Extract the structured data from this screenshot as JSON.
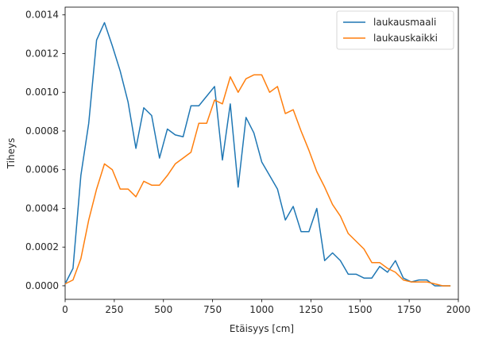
{
  "chart_data": {
    "type": "line",
    "xlabel": "Etäisyys [cm]",
    "ylabel": "Tiheys",
    "xlim": [
      0,
      2000
    ],
    "ylim": [
      -7e-05,
      0.00144
    ],
    "xticks": [
      0,
      250,
      500,
      750,
      1000,
      1250,
      1500,
      1750,
      2000
    ],
    "xtick_labels": [
      "0",
      "250",
      "500",
      "750",
      "1000",
      "1250",
      "1500",
      "1750",
      "2000"
    ],
    "yticks": [
      0,
      0.0002,
      0.0004,
      0.0006,
      0.0008,
      0.001,
      0.0012,
      0.0014
    ],
    "ytick_labels": [
      "0.0000",
      "0.0002",
      "0.0004",
      "0.0006",
      "0.0008",
      "0.0010",
      "0.0012",
      "0.0014"
    ],
    "grid": false,
    "legend_position": "top-right",
    "series": [
      {
        "name": "laukausmaali",
        "color": "#1f77b4",
        "x": [
          0,
          40,
          80,
          120,
          160,
          200,
          240,
          280,
          320,
          360,
          400,
          440,
          480,
          520,
          560,
          600,
          640,
          680,
          720,
          760,
          800,
          840,
          880,
          920,
          960,
          1000,
          1040,
          1080,
          1120,
          1160,
          1200,
          1240,
          1280,
          1320,
          1360,
          1400,
          1440,
          1480,
          1520,
          1560,
          1600,
          1640,
          1680,
          1720,
          1760,
          1800,
          1840,
          1880,
          1920,
          1960
        ],
        "y": [
          1e-05,
          9e-05,
          0.00057,
          0.00084,
          0.00127,
          0.00136,
          0.00124,
          0.00111,
          0.00095,
          0.00071,
          0.00092,
          0.00088,
          0.00066,
          0.00081,
          0.00078,
          0.00077,
          0.00093,
          0.00093,
          0.00098,
          0.00103,
          0.00065,
          0.00094,
          0.00051,
          0.00087,
          0.00079,
          0.00064,
          0.00057,
          0.0005,
          0.00034,
          0.00041,
          0.00028,
          0.00028,
          0.0004,
          0.00013,
          0.00017,
          0.00013,
          6e-05,
          6e-05,
          4e-05,
          4e-05,
          0.0001,
          7e-05,
          0.00013,
          4e-05,
          2e-05,
          3e-05,
          3e-05,
          0.0,
          0.0,
          0.0
        ]
      },
      {
        "name": "laukauskaikki",
        "color": "#ff7f0e",
        "x": [
          0,
          40,
          80,
          120,
          160,
          200,
          240,
          280,
          320,
          360,
          400,
          440,
          480,
          520,
          560,
          600,
          640,
          680,
          720,
          760,
          800,
          840,
          880,
          920,
          960,
          1000,
          1040,
          1080,
          1120,
          1160,
          1200,
          1240,
          1280,
          1320,
          1360,
          1400,
          1440,
          1480,
          1520,
          1560,
          1600,
          1640,
          1680,
          1720,
          1760,
          1800,
          1840,
          1880,
          1920,
          1960
        ],
        "y": [
          1e-05,
          3e-05,
          0.00014,
          0.00034,
          0.0005,
          0.00063,
          0.0006,
          0.0005,
          0.0005,
          0.00046,
          0.00054,
          0.00052,
          0.00052,
          0.00057,
          0.00063,
          0.00066,
          0.00069,
          0.00084,
          0.00084,
          0.00096,
          0.00094,
          0.00108,
          0.001,
          0.00107,
          0.00109,
          0.00109,
          0.001,
          0.00103,
          0.00089,
          0.00091,
          0.0008,
          0.0007,
          0.00059,
          0.00051,
          0.00042,
          0.00036,
          0.00027,
          0.00023,
          0.00019,
          0.00012,
          0.00012,
          9e-05,
          7e-05,
          3e-05,
          2e-05,
          2e-05,
          2e-05,
          1e-05,
          0.0,
          0.0
        ]
      }
    ]
  }
}
